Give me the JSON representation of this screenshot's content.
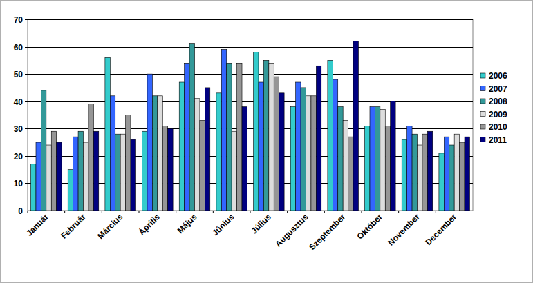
{
  "chart_data": {
    "type": "bar",
    "categories": [
      "Január",
      "Február",
      "Március",
      "Április",
      "Május",
      "Június",
      "Július",
      "Augusztus",
      "Szeptember",
      "Október",
      "November",
      "December"
    ],
    "series": [
      {
        "name": "2006",
        "color": "#33cccc",
        "values": [
          17,
          15,
          56,
          29,
          47,
          43,
          58,
          38,
          55,
          31,
          26,
          21
        ]
      },
      {
        "name": "2007",
        "color": "#3366ff",
        "values": [
          25,
          27,
          42,
          50,
          54,
          59,
          47,
          47,
          48,
          38,
          31,
          27
        ]
      },
      {
        "name": "2008",
        "color": "#339999",
        "values": [
          44,
          29,
          28,
          42,
          61,
          54,
          55,
          45,
          38,
          38,
          28,
          24
        ]
      },
      {
        "name": "2009",
        "color": "#dddddd",
        "values": [
          24,
          25,
          28,
          42,
          41,
          29,
          54,
          42,
          33,
          37,
          24,
          28
        ]
      },
      {
        "name": "2010",
        "color": "#969696",
        "values": [
          29,
          39,
          35,
          31,
          33,
          54,
          49,
          42,
          27,
          31,
          28,
          25
        ]
      },
      {
        "name": "2011",
        "color": "#000080",
        "values": [
          25,
          29,
          26,
          30,
          45,
          38,
          43,
          53,
          62,
          40,
          29,
          27
        ]
      }
    ],
    "ylim": [
      0,
      70
    ],
    "yticks": [
      0,
      10,
      20,
      30,
      40,
      50,
      60,
      70
    ],
    "grid": true,
    "legend": "right"
  }
}
